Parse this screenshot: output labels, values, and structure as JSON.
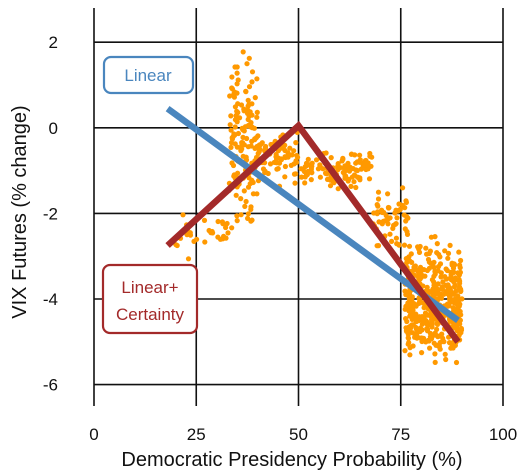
{
  "chart_data": {
    "type": "scatter",
    "xlabel": "Democratic Presidency Probability (%)",
    "ylabel": "VIX Futures (% change)",
    "xlim": [
      0,
      100
    ],
    "ylim": [
      -6.5,
      2.8
    ],
    "xticks": [
      0,
      25,
      50,
      75,
      100
    ],
    "yticks": [
      2,
      0,
      -2,
      -4,
      -6
    ],
    "grid": true,
    "point_color": "#FF9900",
    "series": [
      {
        "type": "scatter",
        "clusters": [
          {
            "x": [
              33,
              40
            ],
            "y": [
              -3.0,
              2.3
            ]
          },
          {
            "x": [
              20,
              33
            ],
            "y": [
              -3.2,
              -1.8
            ]
          },
          {
            "x": [
              40,
              50
            ],
            "y": [
              -1.5,
              0.2
            ]
          },
          {
            "x": [
              50,
              68
            ],
            "y": [
              -1.5,
              -0.4
            ]
          },
          {
            "x": [
              68,
              77
            ],
            "y": [
              -3.0,
              -1.2
            ]
          },
          {
            "x": [
              76,
              90
            ],
            "y": [
              -6.0,
              -2.3
            ]
          }
        ]
      },
      {
        "name": "Linear",
        "type": "line",
        "color": "#4A86BE",
        "x": [
          18,
          89
        ],
        "y": [
          0.45,
          -4.5
        ]
      },
      {
        "name": "Linear+ Certainty",
        "type": "line",
        "color": "#A32A2A",
        "x": [
          18,
          50,
          89
        ],
        "y": [
          -2.75,
          0.05,
          -5.0
        ]
      }
    ],
    "legend": [
      {
        "label": "Linear",
        "color": "#4A86BE",
        "position": "top-left"
      },
      {
        "label_line1": "Linear+",
        "label_line2": "Certainty",
        "color": "#A32A2A",
        "position": "bottom-left"
      }
    ]
  }
}
